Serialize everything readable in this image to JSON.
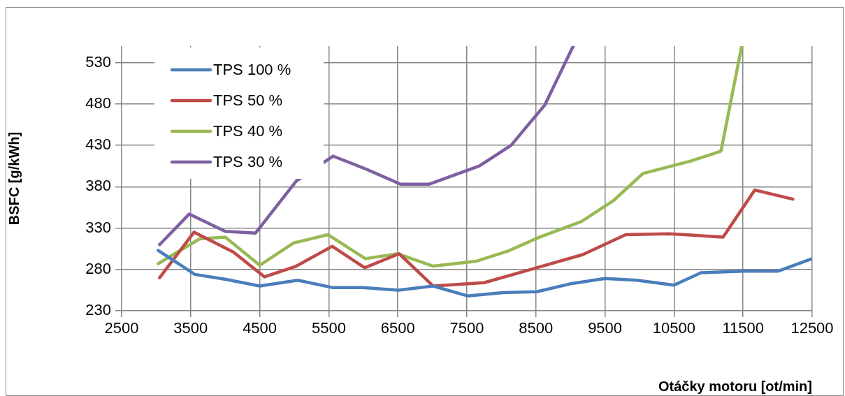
{
  "chart_data": {
    "type": "line",
    "xlabel": "Otáčky motoru [ot/min]",
    "ylabel": "BSFC [g/kWh]",
    "xlim": [
      2500,
      12500
    ],
    "xticks": [
      2500,
      3500,
      4500,
      5500,
      6500,
      7500,
      8500,
      9500,
      10500,
      11500,
      12500
    ],
    "ylim": [
      230,
      550
    ],
    "yticks": [
      230,
      280,
      330,
      380,
      430,
      480,
      530
    ],
    "grid": true,
    "legend": "top left",
    "marker": "none",
    "line_style": "solid",
    "series": [
      {
        "name": "TPS 100 %",
        "color": "#4a7ebb",
        "x": [
          3030,
          3560,
          4010,
          4500,
          5050,
          5560,
          5990,
          6510,
          7010,
          7510,
          8020,
          8510,
          9020,
          9500,
          9960,
          10500,
          10890,
          11510,
          12010,
          12500
        ],
        "values": [
          303,
          274,
          268,
          260,
          267,
          258,
          258,
          255,
          260,
          248,
          252,
          253,
          263,
          269,
          267,
          261,
          276,
          278,
          278,
          293
        ]
      },
      {
        "name": "TPS 50 %",
        "color": "#be4b48",
        "x": [
          3050,
          3550,
          4120,
          4570,
          5030,
          5550,
          6020,
          6520,
          7010,
          7750,
          8510,
          9180,
          9800,
          10420,
          10660,
          11210,
          11670,
          12220
        ],
        "values": [
          270,
          325,
          301,
          271,
          284,
          308,
          282,
          299,
          260,
          264,
          282,
          298,
          322,
          323,
          322,
          319,
          376,
          365
        ]
      },
      {
        "name": "TPS 40 %",
        "color": "#98b954",
        "x": [
          3030,
          3630,
          4000,
          4500,
          4990,
          5490,
          6030,
          6500,
          7010,
          7640,
          8090,
          8550,
          9160,
          9620,
          10050,
          10740,
          11180,
          11480
        ],
        "values": [
          287,
          317,
          319,
          285,
          312,
          322,
          293,
          299,
          284,
          290,
          302,
          319,
          338,
          363,
          396,
          411,
          423,
          550
        ]
      },
      {
        "name": "TPS 30 %",
        "color": "#7d60a0",
        "x": [
          3050,
          3480,
          4000,
          4440,
          5030,
          5560,
          6050,
          6540,
          6950,
          7680,
          8140,
          8630,
          9040
        ],
        "values": [
          310,
          347,
          326,
          324,
          387,
          417,
          401,
          383,
          383,
          405,
          430,
          479,
          550
        ]
      }
    ]
  }
}
